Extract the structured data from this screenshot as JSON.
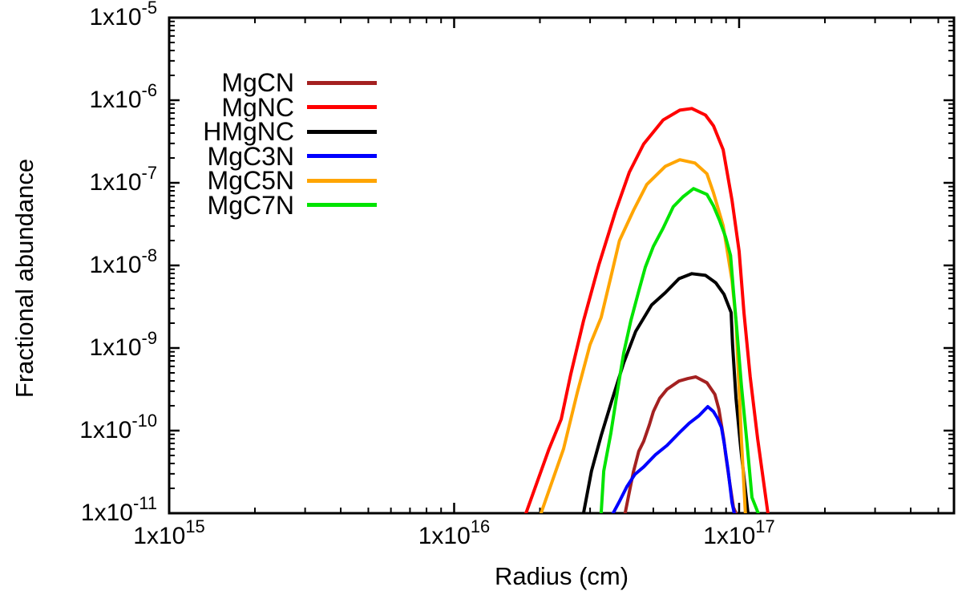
{
  "figure": {
    "background": "#ffffff",
    "axis_color": "#000000"
  },
  "chart_data": {
    "type": "line",
    "title": "",
    "xlabel": "Radius (cm)",
    "ylabel": "Fractional abundance",
    "x_scale": "log",
    "y_scale": "log",
    "x_range_log10": [
      15,
      17.754
    ],
    "y_range_log10": [
      -11,
      -5
    ],
    "grid": "off",
    "legend_position": "top-left-inside",
    "x_axis": {
      "major_ticks": [
        {
          "log10": 15,
          "label": "1x10^15"
        },
        {
          "log10": 16,
          "label": "1x10^16"
        },
        {
          "log10": 17,
          "label": "1x10^17"
        }
      ]
    },
    "y_axis": {
      "major_ticks": [
        {
          "log10": -5,
          "label": "1x10^-5"
        },
        {
          "log10": -6,
          "label": "1x10^-6"
        },
        {
          "log10": -7,
          "label": "1x10^-7"
        },
        {
          "log10": -8,
          "label": "1x10^-8"
        },
        {
          "log10": -9,
          "label": "1x10^-9"
        },
        {
          "log10": -10,
          "label": "1x10^-10"
        },
        {
          "log10": -11,
          "label": "1x10^-11"
        }
      ]
    },
    "series": [
      {
        "name": "MgCN",
        "color": "#a42121",
        "peak": {
          "radius_log10": 16.85,
          "abundance_log10": -9.35
        },
        "points_log10": [
          [
            16.6,
            -11.0
          ],
          [
            16.615,
            -10.74
          ],
          [
            16.629,
            -10.5
          ],
          [
            16.648,
            -10.25
          ],
          [
            16.665,
            -10.13
          ],
          [
            16.685,
            -9.93
          ],
          [
            16.699,
            -9.77
          ],
          [
            16.721,
            -9.61
          ],
          [
            16.747,
            -9.5
          ],
          [
            16.789,
            -9.4
          ],
          [
            16.82,
            -9.37
          ],
          [
            16.848,
            -9.35
          ],
          [
            16.887,
            -9.42
          ],
          [
            16.915,
            -9.56
          ],
          [
            16.929,
            -9.74
          ],
          [
            16.938,
            -9.93
          ],
          [
            16.946,
            -10.1
          ],
          [
            16.952,
            -10.27
          ],
          [
            16.966,
            -10.61
          ],
          [
            16.98,
            -10.93
          ],
          [
            16.989,
            -11.0
          ]
        ]
      },
      {
        "name": "MgNC",
        "color": "#ff0000",
        "peak": {
          "radius_log10": 16.83,
          "abundance_log10": -6.1
        },
        "points_log10": [
          [
            16.252,
            -11.0
          ],
          [
            16.333,
            -10.22
          ],
          [
            16.376,
            -9.86
          ],
          [
            16.409,
            -9.32
          ],
          [
            16.454,
            -8.67
          ],
          [
            16.508,
            -7.99
          ],
          [
            16.567,
            -7.34
          ],
          [
            16.615,
            -6.87
          ],
          [
            16.665,
            -6.53
          ],
          [
            16.733,
            -6.24
          ],
          [
            16.792,
            -6.12
          ],
          [
            16.834,
            -6.1
          ],
          [
            16.882,
            -6.18
          ],
          [
            16.91,
            -6.31
          ],
          [
            16.944,
            -6.6
          ],
          [
            16.975,
            -7.21
          ],
          [
            17.0,
            -7.83
          ],
          [
            17.017,
            -8.57
          ],
          [
            17.039,
            -9.35
          ],
          [
            17.065,
            -10.1
          ],
          [
            17.101,
            -11.0
          ]
        ]
      },
      {
        "name": "HMgNC",
        "color": "#000000",
        "peak": {
          "radius_log10": 16.83,
          "abundance_log10": -8.1
        },
        "points_log10": [
          [
            16.454,
            -11.0
          ],
          [
            16.482,
            -10.49
          ],
          [
            16.516,
            -10.06
          ],
          [
            16.553,
            -9.64
          ],
          [
            16.595,
            -9.18
          ],
          [
            16.637,
            -8.8
          ],
          [
            16.693,
            -8.48
          ],
          [
            16.741,
            -8.33
          ],
          [
            16.789,
            -8.16
          ],
          [
            16.834,
            -8.1
          ],
          [
            16.882,
            -8.12
          ],
          [
            16.918,
            -8.21
          ],
          [
            16.947,
            -8.35
          ],
          [
            16.972,
            -8.57
          ],
          [
            16.977,
            -8.96
          ],
          [
            16.989,
            -9.61
          ],
          [
            17.006,
            -10.22
          ],
          [
            17.031,
            -11.0
          ]
        ]
      },
      {
        "name": "MgC3N",
        "color": "#0000ff",
        "peak": {
          "radius_log10": 16.89,
          "abundance_log10": -9.71
        },
        "points_log10": [
          [
            16.558,
            -11.0
          ],
          [
            16.578,
            -10.87
          ],
          [
            16.606,
            -10.68
          ],
          [
            16.634,
            -10.53
          ],
          [
            16.665,
            -10.44
          ],
          [
            16.707,
            -10.29
          ],
          [
            16.747,
            -10.18
          ],
          [
            16.789,
            -10.03
          ],
          [
            16.825,
            -9.91
          ],
          [
            16.859,
            -9.82
          ],
          [
            16.89,
            -9.71
          ],
          [
            16.91,
            -9.77
          ],
          [
            16.924,
            -9.85
          ],
          [
            16.938,
            -9.96
          ],
          [
            16.949,
            -10.18
          ],
          [
            16.961,
            -10.47
          ],
          [
            16.975,
            -10.87
          ],
          [
            16.983,
            -11.0
          ]
        ]
      },
      {
        "name": "MgC5N",
        "color": "#ffa500",
        "peak": {
          "radius_log10": 16.79,
          "abundance_log10": -6.72
        },
        "points_log10": [
          [
            16.305,
            -11.0
          ],
          [
            16.384,
            -10.22
          ],
          [
            16.432,
            -9.54
          ],
          [
            16.477,
            -8.96
          ],
          [
            16.516,
            -8.63
          ],
          [
            16.55,
            -8.14
          ],
          [
            16.58,
            -7.7
          ],
          [
            16.63,
            -7.33
          ],
          [
            16.676,
            -7.02
          ],
          [
            16.741,
            -6.8
          ],
          [
            16.792,
            -6.72
          ],
          [
            16.845,
            -6.76
          ],
          [
            16.887,
            -6.89
          ],
          [
            16.91,
            -7.12
          ],
          [
            16.944,
            -7.52
          ],
          [
            16.975,
            -8.18
          ],
          [
            16.989,
            -8.67
          ],
          [
            17.008,
            -10.1
          ],
          [
            17.022,
            -11.0
          ]
        ]
      },
      {
        "name": "MgC7N",
        "color": "#00e400",
        "peak": {
          "radius_log10": 16.84,
          "abundance_log10": -7.07
        },
        "points_log10": [
          [
            16.516,
            -11.0
          ],
          [
            16.525,
            -10.49
          ],
          [
            16.55,
            -10.03
          ],
          [
            16.573,
            -9.52
          ],
          [
            16.595,
            -9.06
          ],
          [
            16.62,
            -8.67
          ],
          [
            16.648,
            -8.31
          ],
          [
            16.671,
            -8.02
          ],
          [
            16.699,
            -7.77
          ],
          [
            16.733,
            -7.55
          ],
          [
            16.769,
            -7.29
          ],
          [
            16.803,
            -7.17
          ],
          [
            16.84,
            -7.07
          ],
          [
            16.887,
            -7.14
          ],
          [
            16.91,
            -7.28
          ],
          [
            16.932,
            -7.46
          ],
          [
            16.952,
            -7.65
          ],
          [
            16.97,
            -7.88
          ],
          [
            16.98,
            -8.31
          ],
          [
            16.991,
            -8.74
          ],
          [
            17.008,
            -9.45
          ],
          [
            17.028,
            -10.16
          ],
          [
            17.045,
            -10.81
          ],
          [
            17.067,
            -11.0
          ]
        ]
      }
    ]
  }
}
